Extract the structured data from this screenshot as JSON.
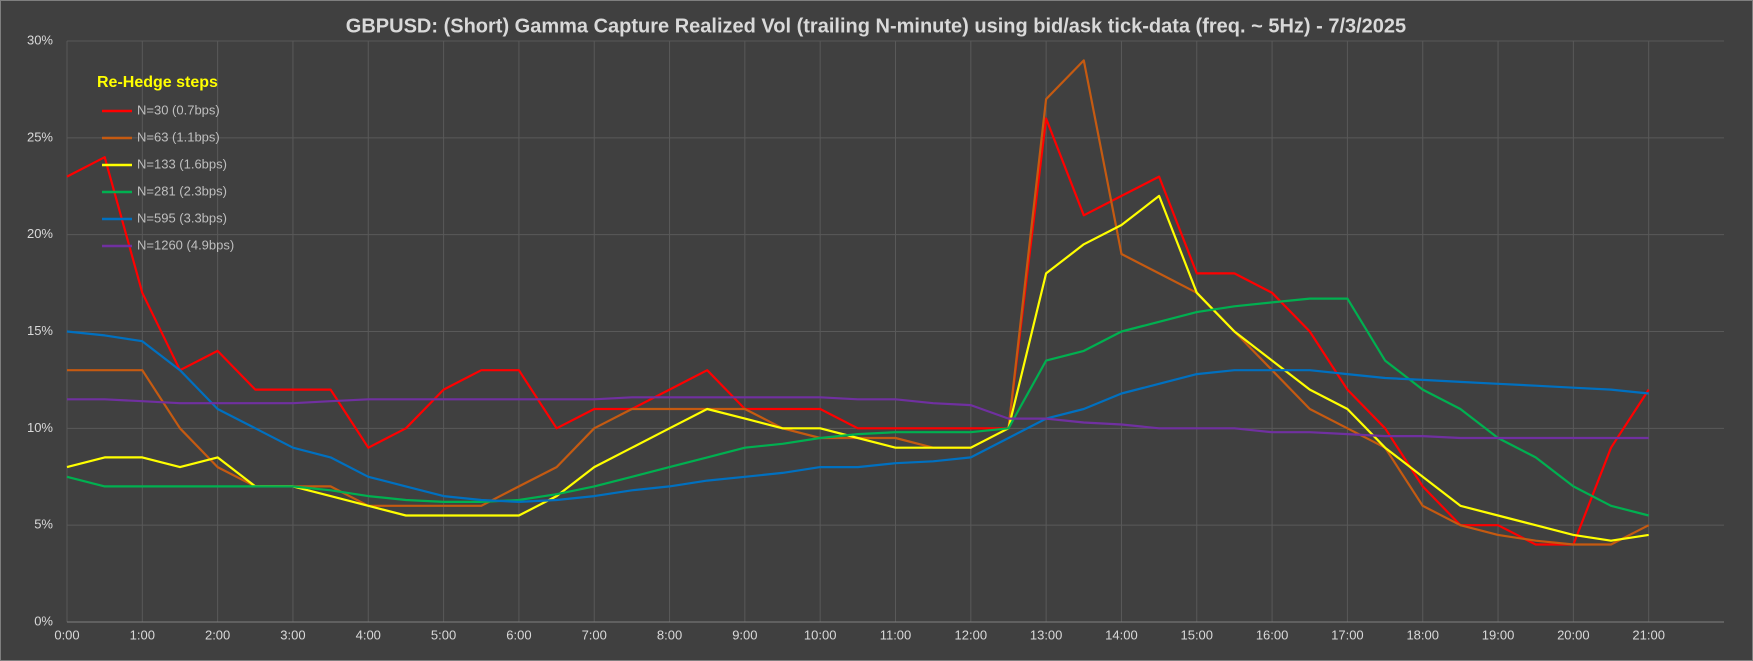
{
  "chart_data": {
    "type": "line",
    "title": "GBPUSD: (Short) Gamma Capture Realized Vol (trailing N-minute) using bid/ask tick-data (freq. ~ 5Hz) - 7/3/2025",
    "legend_title": "Re-Hedge steps",
    "legend": "top-left",
    "grid": true,
    "x": [
      0,
      0.5,
      1,
      1.5,
      2,
      2.5,
      3,
      3.5,
      4,
      4.5,
      5,
      5.5,
      6,
      6.5,
      7,
      7.5,
      8,
      8.5,
      9,
      9.5,
      10,
      10.5,
      11,
      11.5,
      12,
      12.5,
      13,
      13.5,
      14,
      14.5,
      15,
      15.5,
      16,
      16.5,
      17,
      17.5,
      18,
      18.5,
      19,
      19.5,
      20,
      20.5,
      21
    ],
    "xlim": [
      0,
      22
    ],
    "xticks": [
      {
        "value": 0,
        "label": "0:00"
      },
      {
        "value": 1,
        "label": "1:00"
      },
      {
        "value": 2,
        "label": "2:00"
      },
      {
        "value": 3,
        "label": "3:00"
      },
      {
        "value": 4,
        "label": "4:00"
      },
      {
        "value": 5,
        "label": "5:00"
      },
      {
        "value": 6,
        "label": "6:00"
      },
      {
        "value": 7,
        "label": "7:00"
      },
      {
        "value": 8,
        "label": "8:00"
      },
      {
        "value": 9,
        "label": "9:00"
      },
      {
        "value": 10,
        "label": "10:00"
      },
      {
        "value": 11,
        "label": "11:00"
      },
      {
        "value": 12,
        "label": "12:00"
      },
      {
        "value": 13,
        "label": "13:00"
      },
      {
        "value": 14,
        "label": "14:00"
      },
      {
        "value": 15,
        "label": "15:00"
      },
      {
        "value": 16,
        "label": "16:00"
      },
      {
        "value": 17,
        "label": "17:00"
      },
      {
        "value": 18,
        "label": "18:00"
      },
      {
        "value": 19,
        "label": "19:00"
      },
      {
        "value": 20,
        "label": "20:00"
      },
      {
        "value": 21,
        "label": "21:00"
      }
    ],
    "ylim": [
      0,
      30
    ],
    "yticks": [
      {
        "value": 0,
        "label": "0%"
      },
      {
        "value": 5,
        "label": "5%"
      },
      {
        "value": 10,
        "label": "10%"
      },
      {
        "value": 15,
        "label": "15%"
      },
      {
        "value": 20,
        "label": "20%"
      },
      {
        "value": 25,
        "label": "25%"
      },
      {
        "value": 30,
        "label": "30%"
      }
    ],
    "series": [
      {
        "name": "N=30 (0.7bps)",
        "color": "#ff0000",
        "values": [
          23,
          24,
          17,
          13,
          14,
          12,
          12,
          12,
          9,
          10,
          12,
          13,
          13,
          10,
          11,
          11,
          12,
          13,
          11,
          11,
          11,
          10,
          10,
          10,
          10,
          10,
          26,
          21,
          22,
          23,
          18,
          18,
          17,
          15,
          12,
          10,
          7,
          5,
          5,
          4,
          4,
          9,
          12
        ]
      },
      {
        "name": "N=63 (1.1bps)",
        "color": "#c55a11",
        "values": [
          13,
          13,
          13,
          10,
          8,
          7,
          7,
          7,
          6,
          6,
          6,
          6,
          7,
          8,
          10,
          11,
          11,
          11,
          11,
          10,
          9.5,
          9.5,
          9.5,
          9,
          9,
          10,
          27,
          29,
          19,
          18,
          17,
          15,
          13,
          11,
          10,
          9,
          6,
          5,
          4.5,
          4.2,
          4,
          4,
          5
        ]
      },
      {
        "name": "N=133 (1.6bps)",
        "color": "#ffff00",
        "values": [
          8,
          8.5,
          8.5,
          8,
          8.5,
          7,
          7,
          6.5,
          6,
          5.5,
          5.5,
          5.5,
          5.5,
          6.5,
          8,
          9,
          10,
          11,
          10.5,
          10,
          10,
          9.5,
          9,
          9,
          9,
          10,
          18,
          19.5,
          20.5,
          22,
          17,
          15,
          13.5,
          12,
          11,
          9,
          7.5,
          6,
          5.5,
          5,
          4.5,
          4.2,
          4.5
        ]
      },
      {
        "name": "N=281 (2.3bps)",
        "color": "#00b050",
        "values": [
          7.5,
          7,
          7,
          7,
          7,
          7,
          7,
          6.8,
          6.5,
          6.3,
          6.2,
          6.2,
          6.3,
          6.6,
          7,
          7.5,
          8,
          8.5,
          9,
          9.2,
          9.5,
          9.7,
          9.8,
          9.8,
          9.8,
          10,
          13.5,
          14,
          15,
          15.5,
          16,
          16.3,
          16.5,
          16.7,
          16.7,
          13.5,
          12,
          11,
          9.5,
          8.5,
          7,
          6,
          5.5
        ]
      },
      {
        "name": "N=595 (3.3bps)",
        "color": "#0070c0",
        "values": [
          15,
          14.8,
          14.5,
          13,
          11,
          10,
          9,
          8.5,
          7.5,
          7,
          6.5,
          6.3,
          6.2,
          6.3,
          6.5,
          6.8,
          7,
          7.3,
          7.5,
          7.7,
          8,
          8,
          8.2,
          8.3,
          8.5,
          9.5,
          10.5,
          11,
          11.8,
          12.3,
          12.8,
          13,
          13,
          13,
          12.8,
          12.6,
          12.5,
          12.4,
          12.3,
          12.2,
          12.1,
          12,
          11.8
        ]
      },
      {
        "name": "N=1260 (4.9bps)",
        "color": "#7030a0",
        "values": [
          11.5,
          11.5,
          11.4,
          11.3,
          11.3,
          11.3,
          11.3,
          11.4,
          11.5,
          11.5,
          11.5,
          11.5,
          11.5,
          11.5,
          11.5,
          11.6,
          11.6,
          11.6,
          11.6,
          11.6,
          11.6,
          11.5,
          11.5,
          11.3,
          11.2,
          10.5,
          10.5,
          10.3,
          10.2,
          10,
          10,
          10,
          9.8,
          9.8,
          9.7,
          9.6,
          9.6,
          9.5,
          9.5,
          9.5,
          9.5,
          9.5,
          9.5
        ]
      }
    ]
  }
}
